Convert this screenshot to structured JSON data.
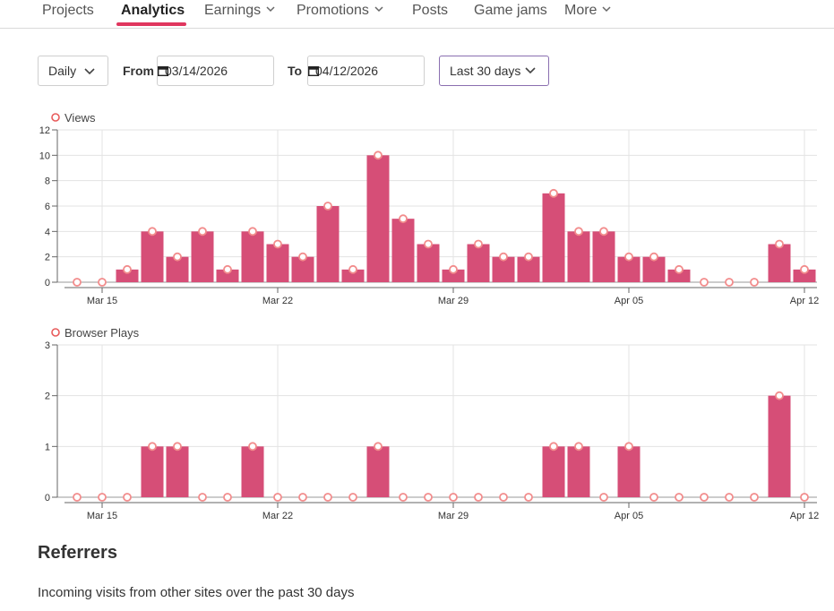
{
  "nav": {
    "items": [
      {
        "label": "Projects",
        "dropdown": false
      },
      {
        "label": "Analytics",
        "dropdown": false,
        "active": true
      },
      {
        "label": "Earnings",
        "dropdown": true
      },
      {
        "label": "Promotions",
        "dropdown": true
      },
      {
        "label": "Posts",
        "dropdown": false
      },
      {
        "label": "Game jams",
        "dropdown": false
      },
      {
        "label": "More",
        "dropdown": true
      }
    ]
  },
  "filters": {
    "interval": "Daily",
    "from_label": "From",
    "from_date": "03/14/2026",
    "to_label": "To",
    "to_date": "04/12/2026",
    "range": "Last 30 days"
  },
  "colors": {
    "bar": "#d64e77",
    "marker": "#f28c8c",
    "accent": "#e0365e",
    "range_border": "#8a6fb0"
  },
  "chart_data": [
    {
      "type": "bar",
      "series": [
        {
          "name": "Views",
          "values": [
            0,
            0,
            1,
            4,
            2,
            4,
            1,
            4,
            3,
            2,
            6,
            1,
            10,
            5,
            3,
            1,
            3,
            2,
            2,
            7,
            4,
            4,
            2,
            2,
            1,
            0,
            0,
            0,
            3,
            1
          ]
        }
      ],
      "x": [
        "Mar 14",
        "Mar 15",
        "Mar 16",
        "Mar 17",
        "Mar 18",
        "Mar 19",
        "Mar 20",
        "Mar 21",
        "Mar 22",
        "Mar 23",
        "Mar 24",
        "Mar 25",
        "Mar 26",
        "Mar 27",
        "Mar 28",
        "Mar 29",
        "Mar 30",
        "Mar 31",
        "Apr 01",
        "Apr 02",
        "Apr 03",
        "Apr 04",
        "Apr 05",
        "Apr 06",
        "Apr 07",
        "Apr 08",
        "Apr 09",
        "Apr 10",
        "Apr 11",
        "Apr 12"
      ],
      "xticks": [
        "Mar 15",
        "Mar 22",
        "Mar 29",
        "Apr 05",
        "Apr 12"
      ],
      "yticks": [
        0,
        2,
        4,
        6,
        8,
        10,
        12
      ],
      "ylim": [
        0,
        12
      ],
      "grid": true,
      "legend": "top-left"
    },
    {
      "type": "bar",
      "series": [
        {
          "name": "Browser Plays",
          "values": [
            0,
            0,
            0,
            1,
            1,
            0,
            0,
            1,
            0,
            0,
            0,
            0,
            1,
            0,
            0,
            0,
            0,
            0,
            0,
            1,
            1,
            0,
            1,
            0,
            0,
            0,
            0,
            0,
            2,
            0
          ]
        }
      ],
      "x": [
        "Mar 14",
        "Mar 15",
        "Mar 16",
        "Mar 17",
        "Mar 18",
        "Mar 19",
        "Mar 20",
        "Mar 21",
        "Mar 22",
        "Mar 23",
        "Mar 24",
        "Mar 25",
        "Mar 26",
        "Mar 27",
        "Mar 28",
        "Mar 29",
        "Mar 30",
        "Mar 31",
        "Apr 01",
        "Apr 02",
        "Apr 03",
        "Apr 04",
        "Apr 05",
        "Apr 06",
        "Apr 07",
        "Apr 08",
        "Apr 09",
        "Apr 10",
        "Apr 11",
        "Apr 12"
      ],
      "xticks": [
        "Mar 15",
        "Mar 22",
        "Mar 29",
        "Apr 05",
        "Apr 12"
      ],
      "yticks": [
        0,
        1,
        2,
        3
      ],
      "ylim": [
        0,
        3
      ],
      "grid": true,
      "legend": "top-left"
    }
  ],
  "referrers": {
    "title": "Referrers",
    "description": "Incoming visits from other sites over the past 30 days"
  }
}
